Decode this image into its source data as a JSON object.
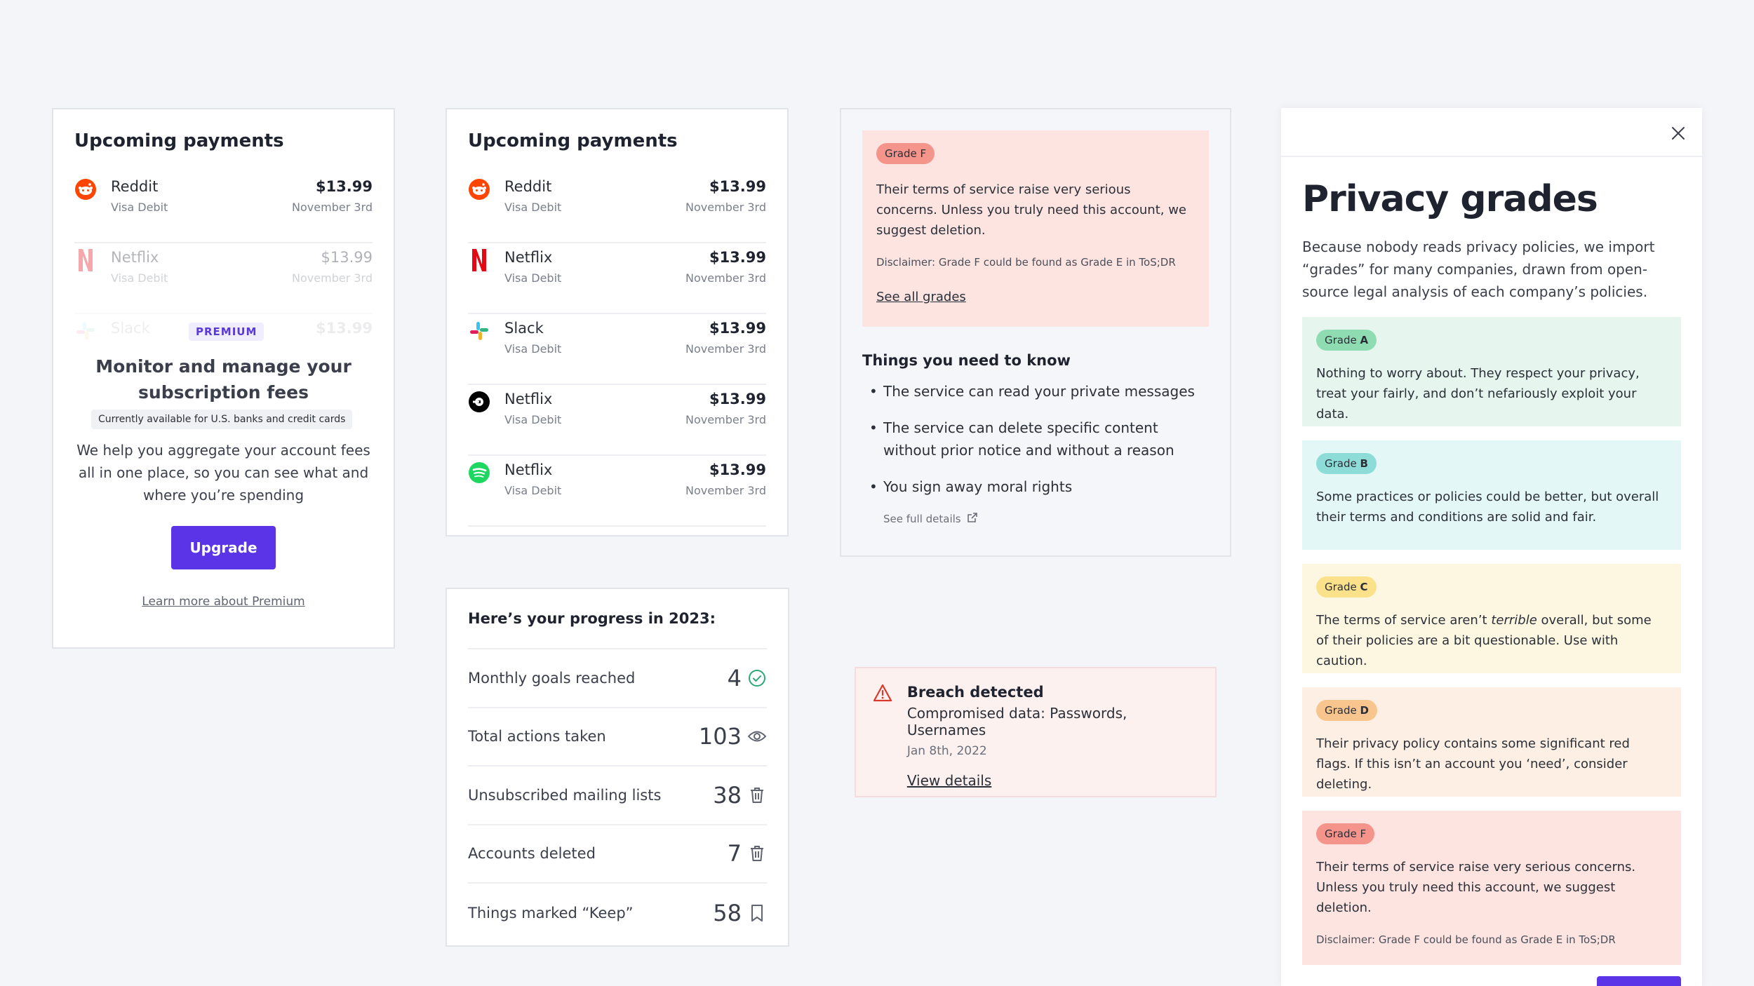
{
  "payments_card_1": {
    "title": "Upcoming payments",
    "rows": [
      {
        "name": "Reddit",
        "method": "Visa Debit",
        "amount": "$13.99",
        "date": "November 3rd",
        "icon": "reddit-icon"
      },
      {
        "name": "Netflix",
        "method": "Visa Debit",
        "amount": "$13.99",
        "date": "November 3rd",
        "icon": "netflix-icon"
      },
      {
        "name": "Slack",
        "method": "",
        "amount": "$13.99",
        "date": "",
        "icon": "slack-icon"
      }
    ],
    "premium_badge": "PREMIUM",
    "promo_title": "Monitor and manage your subscription fees",
    "availability": "Currently available for U.S. banks and credit cards",
    "promo_text": "We help you aggregate your account fees all in one place, so you can see what and where you’re spending",
    "upgrade_label": "Upgrade",
    "learn_more": "Learn more about Premium"
  },
  "payments_card_2": {
    "title": "Upcoming payments",
    "rows": [
      {
        "name": "Reddit",
        "method": "Visa Debit",
        "amount": "$13.99",
        "date": "November 3rd",
        "icon": "reddit-icon"
      },
      {
        "name": "Netflix",
        "method": "Visa Debit",
        "amount": "$13.99",
        "date": "November 3rd",
        "icon": "netflix-icon"
      },
      {
        "name": "Slack",
        "method": "Visa Debit",
        "amount": "$13.99",
        "date": "November 3rd",
        "icon": "slack-icon"
      },
      {
        "name": "Netflix",
        "method": "Visa Debit",
        "amount": "$13.99",
        "date": "November 3rd",
        "icon": "uber-icon"
      },
      {
        "name": "Netflix",
        "method": "Visa Debit",
        "amount": "$13.99",
        "date": "November 3rd",
        "icon": "spotify-icon"
      }
    ]
  },
  "progress": {
    "title": "Here’s your progress in 2023:",
    "rows": [
      {
        "label": "Monthly goals reached",
        "value": "4",
        "icon": "check-circle-icon"
      },
      {
        "label": "Total actions taken",
        "value": "103",
        "icon": "eye-icon"
      },
      {
        "label": "Unsubscribed mailing lists",
        "value": "38",
        "icon": "trash-icon"
      },
      {
        "label": "Accounts deleted",
        "value": "7",
        "icon": "trash-icon"
      },
      {
        "label": "Things marked “Keep”",
        "value": "58",
        "icon": "bookmark-icon"
      }
    ]
  },
  "grade_f_card": {
    "pill": "Grade F",
    "text": "Their terms of service raise very serious concerns. Unless you truly need this account, we suggest deletion.",
    "disclaimer": "Disclaimer: Grade F could be found as Grade E in ToS;DR",
    "see_all": "See all grades",
    "know_title": "Things you need to know",
    "know_items": [
      "The service can read your private messages",
      "The service can delete specific content without prior notice and without a reason",
      "You sign away moral rights"
    ],
    "full_details": "See full details"
  },
  "breach": {
    "title": "Breach detected",
    "data": "Compromised data: Passwords, Usernames",
    "date": "Jan 8th, 2022",
    "link": "View details"
  },
  "privacy_panel": {
    "title": "Privacy grades",
    "intro": "Because nobody reads privacy policies, we import “grades” for many companies, drawn from open-source legal analysis of each company’s policies.",
    "grades": [
      {
        "pill_prefix": "Grade ",
        "letter": "A",
        "text": "Nothing to worry about. They respect your privacy, treat your fairly, and don’t nefariously exploit your data."
      },
      {
        "pill_prefix": "Grade ",
        "letter": "B",
        "text": "Some practices or policies could be better, but overall their terms and conditions are solid and fair."
      },
      {
        "pill_prefix": "Grade ",
        "letter": "C",
        "text_before": "The terms of service aren’t ",
        "text_em": "terrible",
        "text_after": " overall, but some of their policies are a bit questionable. Use with caution."
      },
      {
        "pill_prefix": "Grade ",
        "letter": "D",
        "text": "Their privacy policy contains some significant red flags. If this isn’t an account you ‘need’, consider deleting."
      },
      {
        "pill_prefix": "Grade ",
        "letter": "F",
        "text": "Their terms of service raise very serious concerns. Unless you truly need this account, we suggest deletion.",
        "disclaimer": "Disclaimer: Grade F could be found as Grade E in ToS;DR"
      }
    ]
  },
  "colors": {
    "accent": "#5b34e8",
    "grade_a": "#e6f6ee",
    "grade_b": "#e4f7f7",
    "grade_c": "#fdf7e2",
    "grade_d": "#fdefe3",
    "grade_f": "#fde4e1"
  }
}
